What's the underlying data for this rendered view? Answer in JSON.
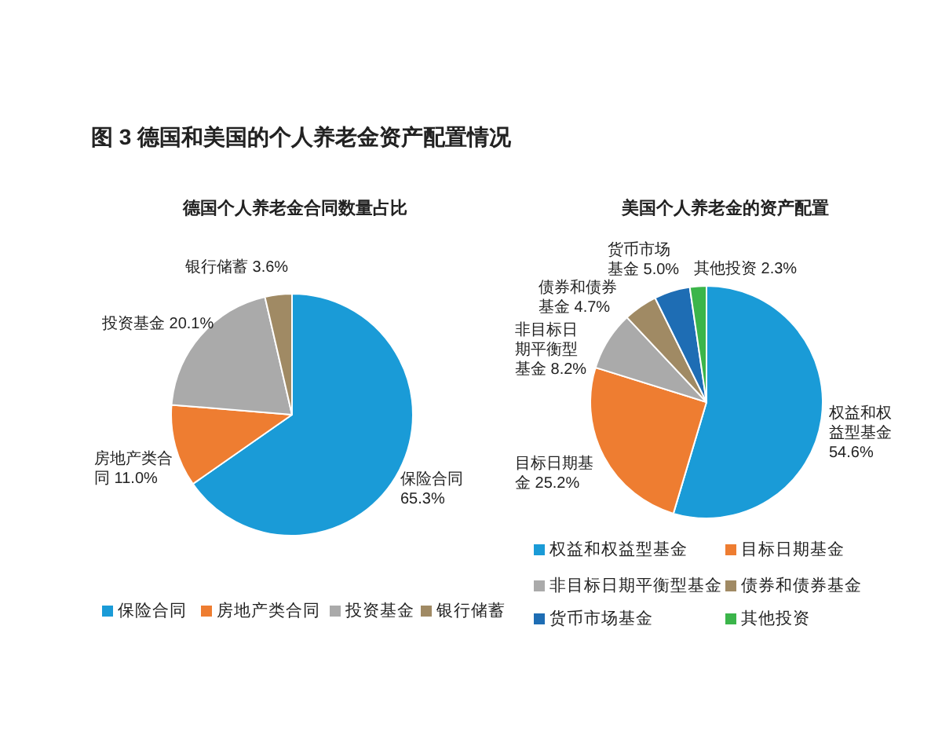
{
  "chart_data": [
    {
      "type": "pie",
      "title": "图 3 德国和美国的个人养老金资产配置情况",
      "subtitle": "德国个人养老金合同数量占比",
      "categories": [
        "保险合同",
        "房地产类合同",
        "投资基金",
        "银行储蓄"
      ],
      "values": [
        65.3,
        11.0,
        20.1,
        3.6
      ],
      "value_labels": [
        "保险合同 65.3%",
        "房地产类合同 11.0%",
        "投资基金 20.1%",
        "银行储蓄 3.6%"
      ],
      "colors": [
        "#1a9bd7",
        "#ee7d31",
        "#aaaaaa",
        "#a08a64"
      ],
      "legend": "bottom"
    },
    {
      "type": "pie",
      "subtitle": "美国个人养老金的资产配置",
      "categories": [
        "权益和权益型基金",
        "目标日期基金",
        "非目标日期平衡型基金",
        "债券和债券基金",
        "货币市场基金",
        "其他投资"
      ],
      "values": [
        54.6,
        25.2,
        8.2,
        4.7,
        5.0,
        2.3
      ],
      "value_labels": [
        "权益和权益型基金 54.6%",
        "目标日期基金 25.2%",
        "非目标日期平衡型基金 8.2%",
        "债券和债券基金 4.7%",
        "货币市场基金 5.0%",
        "其他投资 2.3%"
      ],
      "colors": [
        "#1a9bd7",
        "#ee7d31",
        "#aaaaaa",
        "#a08a64",
        "#1e6db4",
        "#3bb54a"
      ],
      "legend": "bottom"
    }
  ]
}
